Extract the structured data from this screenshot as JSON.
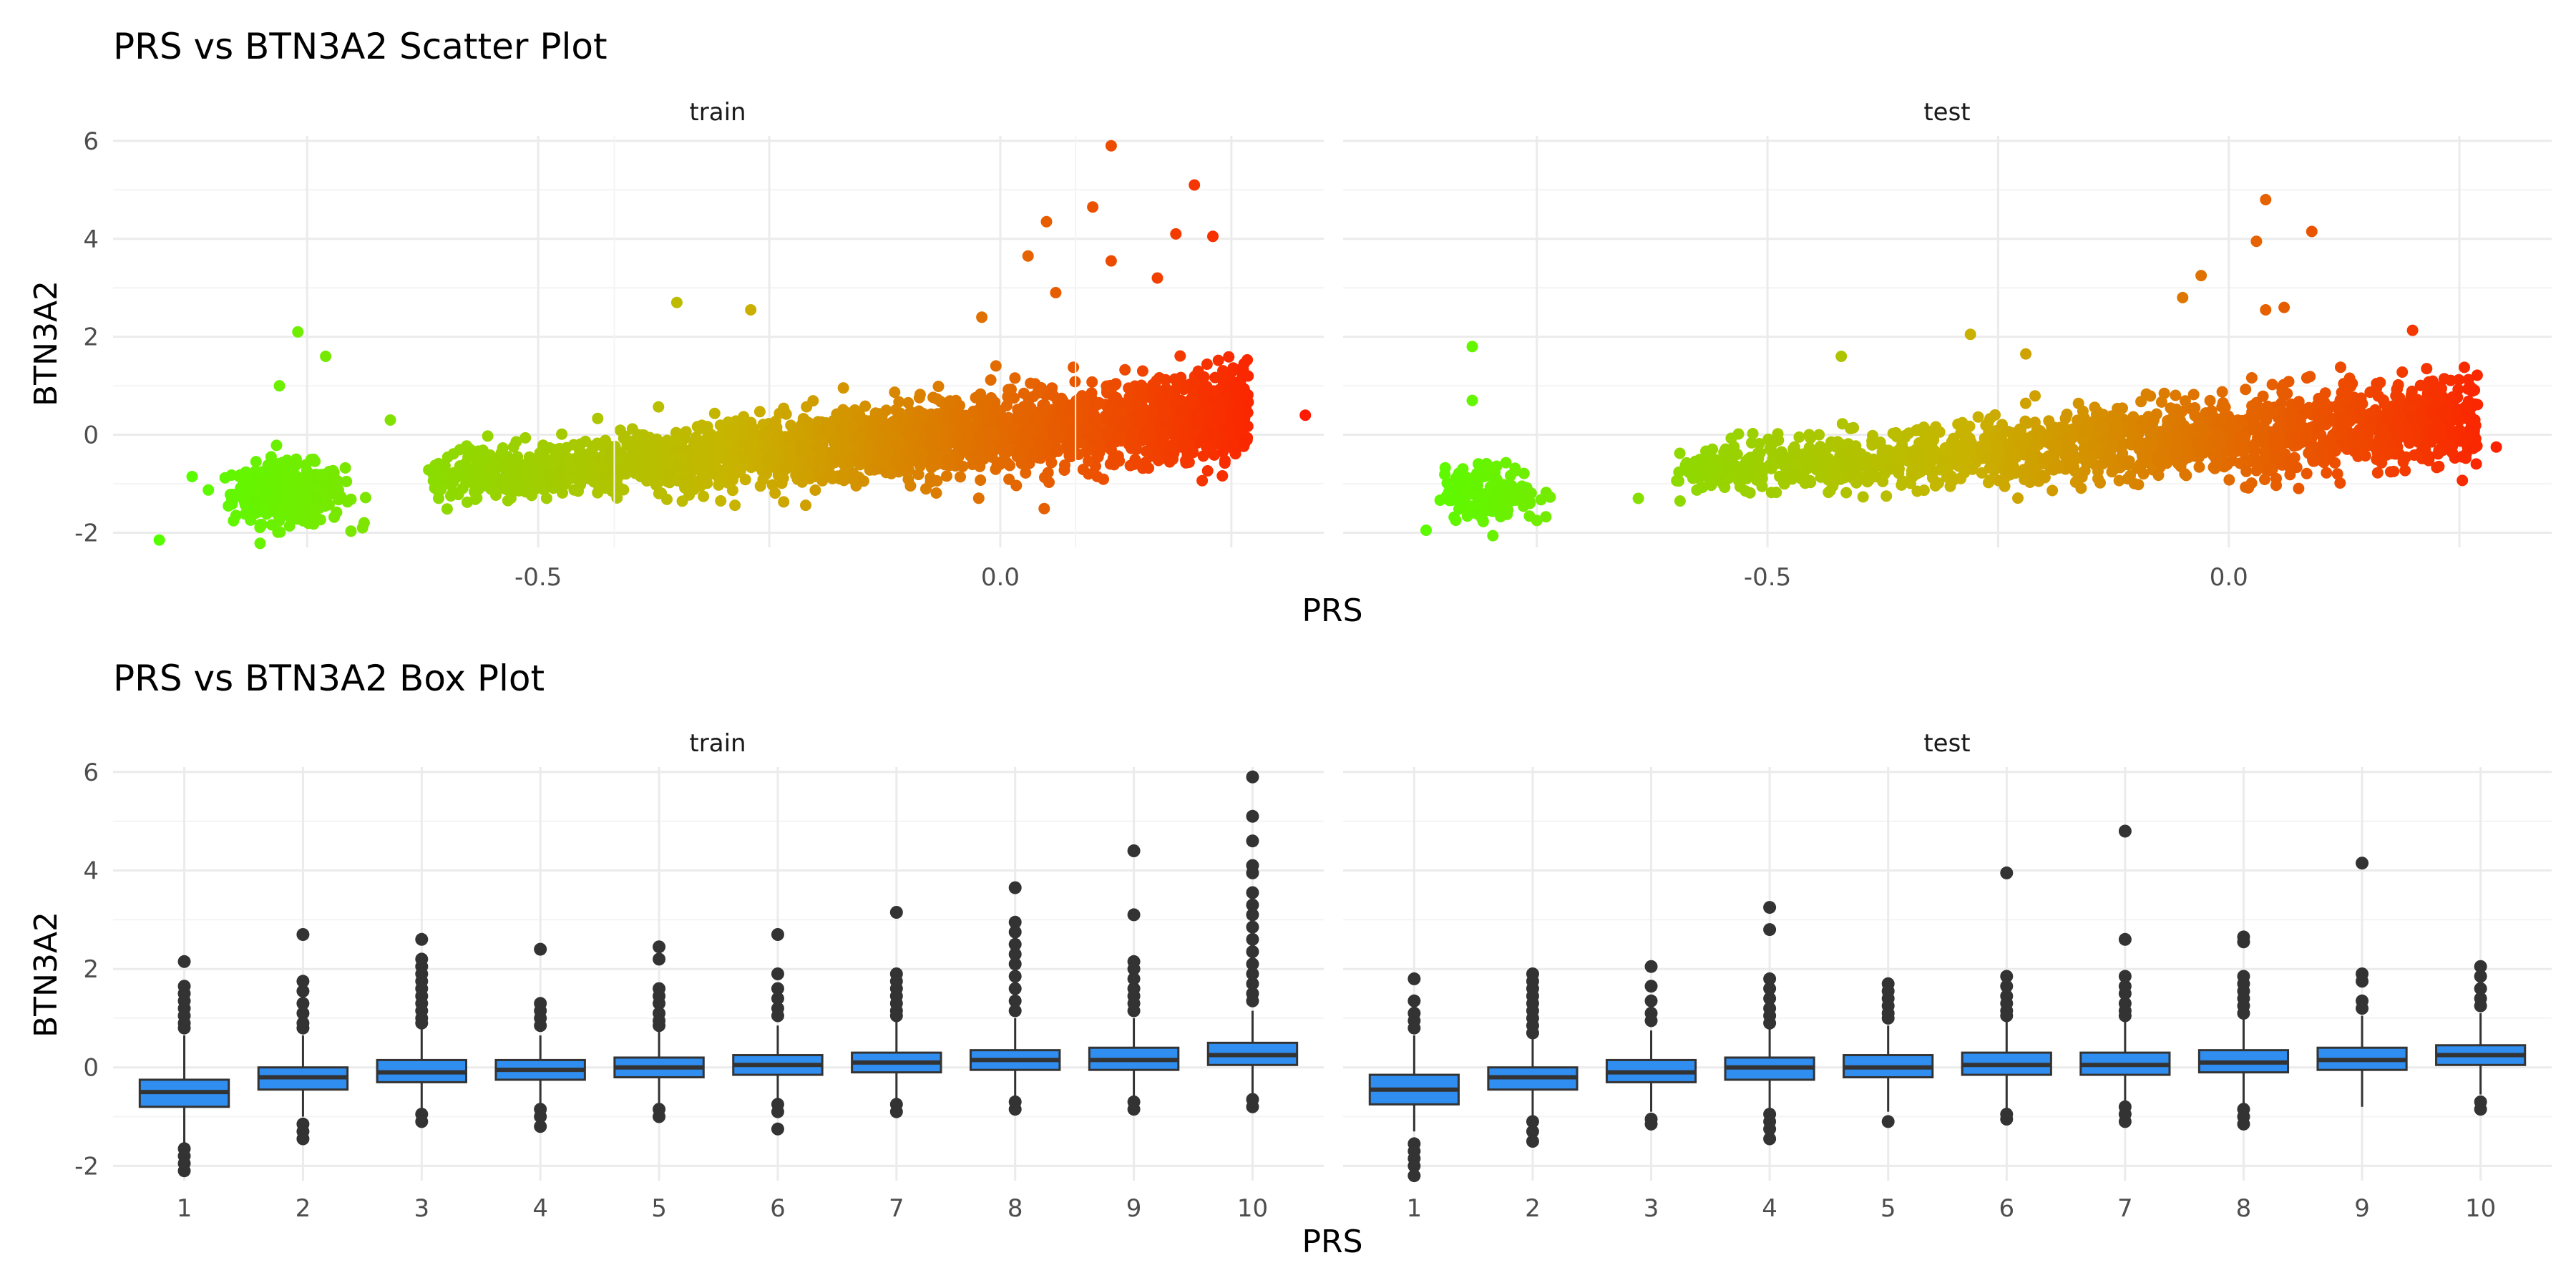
{
  "figure": {
    "scatter_title": "PRS vs BTN3A2 Scatter Plot",
    "box_title": "PRS vs BTN3A2 Box Plot",
    "xlabel": "PRS",
    "ylabel": "BTN3A2",
    "panels": [
      "train",
      "test"
    ]
  },
  "colors": {
    "gradient_low": "#55ff00",
    "gradient_high": "#ff1a00",
    "box_fill": "#2f8ef0",
    "box_line": "#333333",
    "grid_major": "#ebebeb",
    "grid_minor": "#f4f4f4"
  },
  "chart_data": [
    {
      "type": "scatter",
      "title": "PRS vs BTN3A2 Scatter Plot",
      "xlabel": "PRS",
      "ylabel": "BTN3A2",
      "facets": [
        "train",
        "test"
      ],
      "color_scale": "continuous green-to-red by PRS",
      "xlim": [
        -0.96,
        0.35
      ],
      "ylim": [
        -2.3,
        6.1
      ],
      "x_ticks": [
        "-0.5",
        "0.0"
      ],
      "y_ticks": [
        "-2",
        "0",
        "2",
        "4",
        "6"
      ],
      "grid": true,
      "legend": "none",
      "panels": [
        {
          "name": "train",
          "clusters": [
            {
              "x_center": -0.77,
              "x_sd": 0.03,
              "y_center": -1.2,
              "y_sd": 0.3,
              "n": 400
            },
            {
              "x_min": -0.62,
              "x_max": 0.27,
              "y_at_min": -0.9,
              "y_at_max": 0.45,
              "y_sd": 0.35,
              "n": 2600
            }
          ],
          "outliers": [
            {
              "x": 0.12,
              "y": 5.9
            },
            {
              "x": 0.21,
              "y": 5.1
            },
            {
              "x": 0.23,
              "y": 4.05
            },
            {
              "x": 0.1,
              "y": 4.65
            },
            {
              "x": 0.05,
              "y": 4.35
            },
            {
              "x": 0.19,
              "y": 4.1
            },
            {
              "x": 0.12,
              "y": 3.55
            },
            {
              "x": 0.17,
              "y": 3.2
            },
            {
              "x": 0.03,
              "y": 3.65
            },
            {
              "x": -0.35,
              "y": 2.7
            },
            {
              "x": -0.27,
              "y": 2.55
            },
            {
              "x": -0.76,
              "y": 2.1
            },
            {
              "x": -0.73,
              "y": 1.6
            },
            {
              "x": -0.78,
              "y": 1.0
            },
            {
              "x": 0.33,
              "y": 0.4
            },
            {
              "x": -0.91,
              "y": -2.15
            },
            {
              "x": -0.69,
              "y": -1.9
            },
            {
              "x": -0.66,
              "y": 0.3
            },
            {
              "x": -0.02,
              "y": 2.4
            },
            {
              "x": 0.06,
              "y": 2.9
            }
          ]
        },
        {
          "name": "test",
          "clusters": [
            {
              "x_center": -0.8,
              "x_sd": 0.025,
              "y_center": -1.2,
              "y_sd": 0.28,
              "n": 180
            },
            {
              "x_min": -0.6,
              "x_max": 0.27,
              "y_at_min": -0.8,
              "y_at_max": 0.35,
              "y_sd": 0.35,
              "n": 1700
            }
          ],
          "outliers": [
            {
              "x": 0.04,
              "y": 4.8
            },
            {
              "x": 0.03,
              "y": 3.95
            },
            {
              "x": 0.09,
              "y": 4.15
            },
            {
              "x": -0.03,
              "y": 3.25
            },
            {
              "x": -0.05,
              "y": 2.8
            },
            {
              "x": 0.04,
              "y": 2.55
            },
            {
              "x": 0.06,
              "y": 2.6
            },
            {
              "x": -0.82,
              "y": 1.8
            },
            {
              "x": -0.82,
              "y": 0.7
            },
            {
              "x": -0.28,
              "y": 2.05
            },
            {
              "x": -0.22,
              "y": 1.65
            },
            {
              "x": -0.87,
              "y": -1.95
            },
            {
              "x": -0.75,
              "y": -1.75
            },
            {
              "x": 0.25,
              "y": 0.1
            },
            {
              "x": 0.29,
              "y": -0.25
            },
            {
              "x": 0.23,
              "y": 0.7
            },
            {
              "x": -0.64,
              "y": -1.3
            },
            {
              "x": -0.42,
              "y": 1.6
            }
          ]
        }
      ]
    },
    {
      "type": "box",
      "title": "PRS vs BTN3A2 Box Plot",
      "xlabel": "PRS",
      "ylabel": "BTN3A2",
      "facets": [
        "train",
        "test"
      ],
      "categories": [
        "1",
        "2",
        "3",
        "4",
        "5",
        "6",
        "7",
        "8",
        "9",
        "10"
      ],
      "ylim": [
        -2.3,
        6.1
      ],
      "y_ticks": [
        "-2",
        "0",
        "2",
        "4",
        "6"
      ],
      "grid": true,
      "legend": "none",
      "panels": [
        {
          "name": "train",
          "boxes": [
            {
              "q1": -0.8,
              "median": -0.5,
              "q3": -0.25,
              "whisker_low": -1.55,
              "whisker_high": 0.65,
              "outliers": [
                2.15,
                1.65,
                1.5,
                1.35,
                1.2,
                1.05,
                0.9,
                0.8,
                -1.65,
                -1.8,
                -1.95,
                -2.1
              ]
            },
            {
              "q1": -0.45,
              "median": -0.2,
              "q3": 0.0,
              "whisker_low": -1.0,
              "whisker_high": 0.65,
              "outliers": [
                2.7,
                1.75,
                1.55,
                1.3,
                1.1,
                0.9,
                0.8,
                -1.15,
                -1.3,
                -1.45
              ]
            },
            {
              "q1": -0.3,
              "median": -0.1,
              "q3": 0.15,
              "whisker_low": -0.9,
              "whisker_high": 0.8,
              "outliers": [
                2.6,
                2.2,
                2.05,
                1.9,
                1.75,
                1.6,
                1.45,
                1.3,
                1.15,
                1.0,
                0.9,
                -0.95,
                -1.1
              ]
            },
            {
              "q1": -0.25,
              "median": -0.05,
              "q3": 0.15,
              "whisker_low": -0.75,
              "whisker_high": 0.65,
              "outliers": [
                2.4,
                1.3,
                1.15,
                1.0,
                0.85,
                -0.85,
                -1.0,
                -1.2
              ]
            },
            {
              "q1": -0.2,
              "median": 0.0,
              "q3": 0.2,
              "whisker_low": -0.75,
              "whisker_high": 0.75,
              "outliers": [
                2.45,
                2.2,
                1.6,
                1.45,
                1.3,
                1.1,
                0.95,
                0.85,
                -0.85,
                -1.0
              ]
            },
            {
              "q1": -0.15,
              "median": 0.05,
              "q3": 0.25,
              "whisker_low": -0.7,
              "whisker_high": 0.85,
              "outliers": [
                2.7,
                1.9,
                1.6,
                1.4,
                1.2,
                1.05,
                -0.75,
                -0.9,
                -1.25
              ]
            },
            {
              "q1": -0.1,
              "median": 0.1,
              "q3": 0.3,
              "whisker_low": -0.65,
              "whisker_high": 0.95,
              "outliers": [
                3.15,
                1.9,
                1.75,
                1.6,
                1.45,
                1.3,
                1.15,
                1.05,
                -0.75,
                -0.9
              ]
            },
            {
              "q1": -0.05,
              "median": 0.15,
              "q3": 0.35,
              "whisker_low": -0.6,
              "whisker_high": 1.0,
              "outliers": [
                3.65,
                2.95,
                2.75,
                2.5,
                2.3,
                2.1,
                1.85,
                1.6,
                1.35,
                1.15,
                -0.7,
                -0.85
              ]
            },
            {
              "q1": -0.05,
              "median": 0.15,
              "q3": 0.4,
              "whisker_low": -0.6,
              "whisker_high": 1.0,
              "outliers": [
                4.4,
                3.1,
                2.15,
                2.0,
                1.8,
                1.6,
                1.45,
                1.3,
                1.15,
                -0.7,
                -0.85
              ]
            },
            {
              "q1": 0.05,
              "median": 0.25,
              "q3": 0.5,
              "whisker_low": -0.55,
              "whisker_high": 1.15,
              "outliers": [
                5.9,
                5.1,
                4.6,
                4.1,
                3.95,
                3.55,
                3.3,
                3.1,
                2.85,
                2.6,
                2.35,
                2.1,
                1.9,
                1.7,
                1.5,
                1.35,
                -0.65,
                -0.8
              ]
            }
          ]
        },
        {
          "name": "test",
          "boxes": [
            {
              "q1": -0.75,
              "median": -0.45,
              "q3": -0.15,
              "whisker_low": -1.3,
              "whisker_high": 0.65,
              "outliers": [
                1.8,
                1.35,
                1.1,
                0.95,
                0.8,
                -1.55,
                -1.7,
                -1.85,
                -2.0,
                -2.2
              ]
            },
            {
              "q1": -0.45,
              "median": -0.2,
              "q3": 0.0,
              "whisker_low": -1.0,
              "whisker_high": 0.6,
              "outliers": [
                1.9,
                1.75,
                1.6,
                1.45,
                1.3,
                1.15,
                1.0,
                0.85,
                0.7,
                -1.1,
                -1.3,
                -1.5
              ]
            },
            {
              "q1": -0.3,
              "median": -0.1,
              "q3": 0.15,
              "whisker_low": -0.9,
              "whisker_high": 0.75,
              "outliers": [
                2.05,
                1.65,
                1.35,
                1.1,
                0.95,
                -1.05,
                -1.15
              ]
            },
            {
              "q1": -0.25,
              "median": 0.0,
              "q3": 0.2,
              "whisker_low": -0.85,
              "whisker_high": 0.8,
              "outliers": [
                3.25,
                2.8,
                1.8,
                1.6,
                1.4,
                1.2,
                1.05,
                0.9,
                -0.95,
                -1.1,
                -1.25,
                -1.45
              ]
            },
            {
              "q1": -0.2,
              "median": 0.0,
              "q3": 0.25,
              "whisker_low": -0.9,
              "whisker_high": 0.85,
              "outliers": [
                1.7,
                1.55,
                1.4,
                1.25,
                1.1,
                1.0,
                -1.1
              ]
            },
            {
              "q1": -0.15,
              "median": 0.05,
              "q3": 0.3,
              "whisker_low": -0.85,
              "whisker_high": 0.95,
              "outliers": [
                3.95,
                1.85,
                1.65,
                1.45,
                1.3,
                1.15,
                1.05,
                -0.95,
                -1.05
              ]
            },
            {
              "q1": -0.15,
              "median": 0.05,
              "q3": 0.3,
              "whisker_low": -0.75,
              "whisker_high": 0.95,
              "outliers": [
                4.8,
                2.6,
                1.85,
                1.65,
                1.5,
                1.3,
                1.15,
                1.05,
                -0.8,
                -0.95,
                -1.1
              ]
            },
            {
              "q1": -0.1,
              "median": 0.1,
              "q3": 0.35,
              "whisker_low": -0.75,
              "whisker_high": 1.0,
              "outliers": [
                2.65,
                2.55,
                1.85,
                1.7,
                1.55,
                1.4,
                1.25,
                1.1,
                -0.85,
                -1.0,
                -1.15
              ]
            },
            {
              "q1": -0.05,
              "median": 0.15,
              "q3": 0.4,
              "whisker_low": -0.8,
              "whisker_high": 1.05,
              "outliers": [
                4.15,
                1.9,
                1.75,
                1.35,
                1.2
              ]
            },
            {
              "q1": 0.05,
              "median": 0.25,
              "q3": 0.45,
              "whisker_low": -0.55,
              "whisker_high": 1.1,
              "outliers": [
                2.05,
                1.85,
                1.6,
                1.4,
                1.25,
                -0.7,
                -0.85
              ]
            }
          ]
        }
      ]
    }
  ]
}
